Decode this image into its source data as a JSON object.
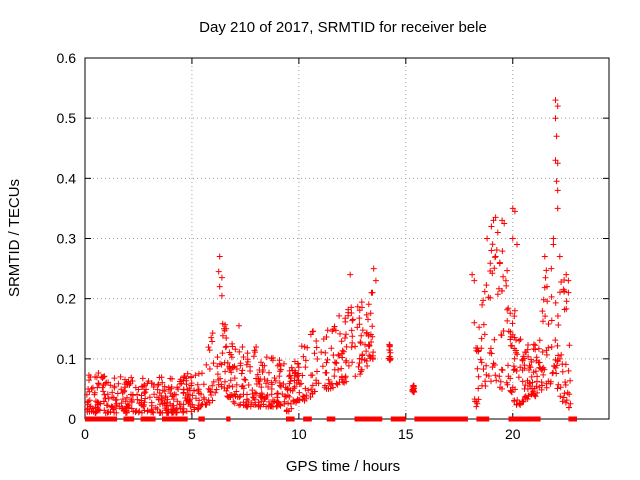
{
  "chart_data": {
    "type": "scatter",
    "title": "Day 210 of 2017, SRMTID for receiver bele",
    "xlabel": "GPS time / hours",
    "ylabel": "SRMTID / TECUs",
    "xlim": [
      0,
      24.5
    ],
    "ylim": [
      0,
      0.6
    ],
    "xticks": [
      0,
      5,
      10,
      15,
      20
    ],
    "xtick_labels": [
      "0",
      "5",
      "10",
      "15",
      "20"
    ],
    "yticks": [
      0,
      0.1,
      0.2,
      0.3,
      0.4,
      0.5,
      0.6
    ],
    "ytick_labels": [
      "0",
      "0.1",
      "0.2",
      "0.3",
      "0.4",
      "0.5",
      "0.6"
    ],
    "grid": true,
    "marker": "+",
    "color": "#ff0000",
    "series": [
      {
        "name": "SRMTID",
        "envelope": [
          [
            0.0,
            0.01,
            0.07
          ],
          [
            0.5,
            0.01,
            0.08
          ],
          [
            1.0,
            0.01,
            0.07
          ],
          [
            1.5,
            0.01,
            0.08
          ],
          [
            2.0,
            0.01,
            0.07
          ],
          [
            2.5,
            0.01,
            0.07
          ],
          [
            3.0,
            0.01,
            0.07
          ],
          [
            3.5,
            0.01,
            0.07
          ],
          [
            4.0,
            0.01,
            0.07
          ],
          [
            4.5,
            0.01,
            0.07
          ],
          [
            5.0,
            0.01,
            0.08
          ],
          [
            5.5,
            0.02,
            0.09
          ],
          [
            6.0,
            0.03,
            0.15
          ],
          [
            6.4,
            0.05,
            0.18
          ],
          [
            6.8,
            0.03,
            0.13
          ],
          [
            7.2,
            0.02,
            0.12
          ],
          [
            7.6,
            0.02,
            0.12
          ],
          [
            8.0,
            0.02,
            0.12
          ],
          [
            8.5,
            0.02,
            0.11
          ],
          [
            9.0,
            0.02,
            0.11
          ],
          [
            9.5,
            0.01,
            0.08
          ],
          [
            10.0,
            0.03,
            0.12
          ],
          [
            10.5,
            0.03,
            0.14
          ],
          [
            11.0,
            0.05,
            0.16
          ],
          [
            11.5,
            0.05,
            0.16
          ],
          [
            12.0,
            0.06,
            0.18
          ],
          [
            12.5,
            0.06,
            0.19
          ],
          [
            13.0,
            0.08,
            0.2
          ],
          [
            13.5,
            0.1,
            0.22
          ],
          [
            14.2,
            0.1,
            0.13
          ],
          [
            15.3,
            0.045,
            0.055
          ],
          [
            18.2,
            0.01,
            0.1
          ],
          [
            18.6,
            0.05,
            0.2
          ],
          [
            19.0,
            0.06,
            0.3
          ],
          [
            19.4,
            0.05,
            0.3
          ],
          [
            19.8,
            0.05,
            0.25
          ],
          [
            20.2,
            0.02,
            0.14
          ],
          [
            21.2,
            0.04,
            0.12
          ],
          [
            21.6,
            0.05,
            0.26
          ],
          [
            22.0,
            0.06,
            0.28
          ],
          [
            22.4,
            0.02,
            0.24
          ],
          [
            22.7,
            0.01,
            0.22
          ]
        ],
        "highlights": [
          [
            6.3,
            0.27
          ],
          [
            6.25,
            0.245
          ],
          [
            6.4,
            0.235
          ],
          [
            6.3,
            0.22
          ],
          [
            6.4,
            0.205
          ],
          [
            6.5,
            0.15
          ],
          [
            6.6,
            0.15
          ],
          [
            7.2,
            0.155
          ],
          [
            12.4,
            0.24
          ],
          [
            13.5,
            0.25
          ],
          [
            13.6,
            0.23
          ],
          [
            18.2,
            0.16
          ],
          [
            18.1,
            0.24
          ],
          [
            18.2,
            0.23
          ],
          [
            18.8,
            0.3
          ],
          [
            19.0,
            0.32
          ],
          [
            19.1,
            0.33
          ],
          [
            19.2,
            0.335
          ],
          [
            19.3,
            0.31
          ],
          [
            19.5,
            0.33
          ],
          [
            19.6,
            0.325
          ],
          [
            19.0,
            0.28
          ],
          [
            19.2,
            0.27
          ],
          [
            19.4,
            0.26
          ],
          [
            20.0,
            0.35
          ],
          [
            20.1,
            0.345
          ],
          [
            20.0,
            0.3
          ],
          [
            20.2,
            0.29
          ],
          [
            21.5,
            0.27
          ],
          [
            21.6,
            0.22
          ],
          [
            21.8,
            0.25
          ],
          [
            21.9,
            0.29
          ],
          [
            22.0,
            0.53
          ],
          [
            22.1,
            0.52
          ],
          [
            22.0,
            0.5
          ],
          [
            22.05,
            0.47
          ],
          [
            22.0,
            0.43
          ],
          [
            22.1,
            0.425
          ],
          [
            22.05,
            0.395
          ],
          [
            22.1,
            0.38
          ],
          [
            22.1,
            0.35
          ],
          [
            21.9,
            0.3
          ],
          [
            22.2,
            0.27
          ],
          [
            22.5,
            0.24
          ],
          [
            22.6,
            0.23
          ],
          [
            22.6,
            0.21
          ],
          [
            20.1,
            0.18
          ],
          [
            20.0,
            0.14
          ],
          [
            20.3,
            0.13
          ]
        ],
        "zeros": [
          [
            0.0,
            1.5
          ],
          [
            1.8,
            2.3
          ],
          [
            2.6,
            3.3
          ],
          [
            3.6,
            4.8
          ],
          [
            5.3,
            5.6
          ],
          [
            6.6,
            6.8
          ],
          [
            9.4,
            9.8
          ],
          [
            10.2,
            10.6
          ],
          [
            11.3,
            11.7
          ],
          [
            12.6,
            13.9
          ],
          [
            14.3,
            15.0
          ],
          [
            15.4,
            17.9
          ],
          [
            18.3,
            18.9
          ],
          [
            19.8,
            21.3
          ],
          [
            22.6,
            23.0
          ]
        ]
      }
    ]
  }
}
